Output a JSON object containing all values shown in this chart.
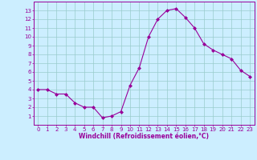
{
  "x": [
    0,
    1,
    2,
    3,
    4,
    5,
    6,
    7,
    8,
    9,
    10,
    11,
    12,
    13,
    14,
    15,
    16,
    17,
    18,
    19,
    20,
    21,
    22,
    23
  ],
  "y": [
    4.0,
    4.0,
    3.5,
    3.5,
    2.5,
    2.0,
    2.0,
    0.8,
    1.0,
    1.5,
    4.5,
    6.5,
    10.0,
    12.0,
    13.0,
    13.2,
    12.2,
    11.0,
    9.2,
    8.5,
    8.0,
    7.5,
    6.2,
    5.5
  ],
  "line_color": "#990099",
  "marker": "D",
  "marker_size": 2,
  "bg_color": "#cceeff",
  "grid_color": "#99cccc",
  "xlabel": "Windchill (Refroidissement éolien,°C)",
  "xlabel_color": "#990099",
  "tick_color": "#990099",
  "spine_color": "#990099",
  "ylim": [
    0,
    14
  ],
  "xlim": [
    -0.5,
    23.5
  ],
  "yticks": [
    1,
    2,
    3,
    4,
    5,
    6,
    7,
    8,
    9,
    10,
    11,
    12,
    13
  ],
  "xticks": [
    0,
    1,
    2,
    3,
    4,
    5,
    6,
    7,
    8,
    9,
    10,
    11,
    12,
    13,
    14,
    15,
    16,
    17,
    18,
    19,
    20,
    21,
    22,
    23
  ],
  "tick_fontsize": 5.0,
  "xlabel_fontsize": 5.5
}
